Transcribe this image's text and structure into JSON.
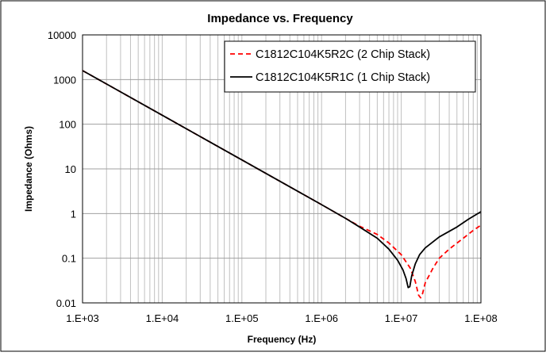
{
  "chart_data": {
    "type": "line",
    "title": "Impedance vs. Frequency",
    "xlabel": "Frequency (Hz)",
    "ylabel": "Impedance (Ohms)",
    "x_scale": "log",
    "y_scale": "log",
    "xlim": [
      1000,
      100000000
    ],
    "ylim": [
      0.01,
      10000
    ],
    "x_ticks": [
      1000,
      10000,
      100000,
      1000000,
      10000000,
      100000000
    ],
    "x_tick_labels": [
      "1.E+03",
      "1.E+04",
      "1.E+05",
      "1.E+06",
      "1.E+07",
      "1.E+08"
    ],
    "y_ticks": [
      0.01,
      0.1,
      1,
      10,
      100,
      1000,
      10000
    ],
    "y_tick_labels": [
      "0.01",
      "0.1",
      "1",
      "10",
      "100",
      "1000",
      "10000"
    ],
    "grid": true,
    "legend_position": "top-right",
    "series": [
      {
        "name": "C1812C104K5R2C (2 Chip Stack)",
        "color": "#ff0000",
        "dash": "dashed",
        "x": [
          1000,
          10000,
          100000,
          1000000,
          2000000,
          3000000,
          5000000,
          7000000,
          10000000,
          13000000,
          15000000,
          16500000,
          17500000,
          18500000,
          20000000,
          25000000,
          30000000,
          40000000,
          60000000,
          80000000,
          100000000
        ],
        "y": [
          1590,
          159,
          15.9,
          1.58,
          0.78,
          0.52,
          0.34,
          0.22,
          0.12,
          0.06,
          0.03,
          0.015,
          0.013,
          0.016,
          0.028,
          0.06,
          0.1,
          0.16,
          0.28,
          0.42,
          0.55
        ]
      },
      {
        "name": "C1812C104K5R1C (1 Chip Stack)",
        "color": "#000000",
        "dash": "solid",
        "x": [
          1000,
          10000,
          100000,
          1000000,
          2000000,
          3000000,
          5000000,
          7000000,
          9000000,
          10500000,
          11500000,
          12200000,
          12800000,
          13500000,
          15000000,
          17000000,
          20000000,
          30000000,
          50000000,
          70000000,
          100000000
        ],
        "y": [
          1590,
          159,
          15.9,
          1.58,
          0.78,
          0.5,
          0.28,
          0.16,
          0.09,
          0.055,
          0.035,
          0.022,
          0.023,
          0.04,
          0.075,
          0.12,
          0.17,
          0.3,
          0.5,
          0.75,
          1.1
        ]
      }
    ]
  }
}
